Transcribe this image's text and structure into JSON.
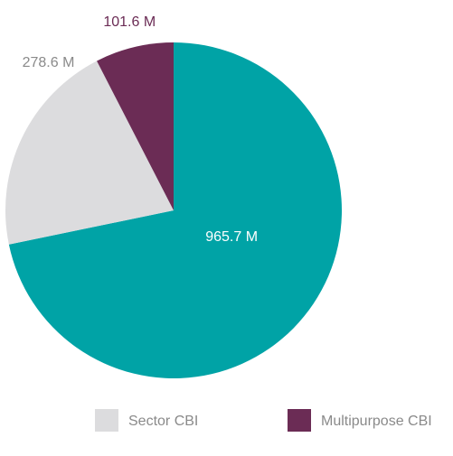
{
  "chart_data": {
    "type": "pie",
    "categories": [
      null,
      "Sector CBI",
      "Multipurpose CBI"
    ],
    "values": [
      965.7,
      278.6,
      101.6
    ],
    "value_labels": [
      "965.7 M",
      "278.6 M",
      "101.6 M"
    ],
    "colors": [
      "#00a3a6",
      "#dcdcde",
      "#6b2c55"
    ],
    "legend": "bottom"
  }
}
